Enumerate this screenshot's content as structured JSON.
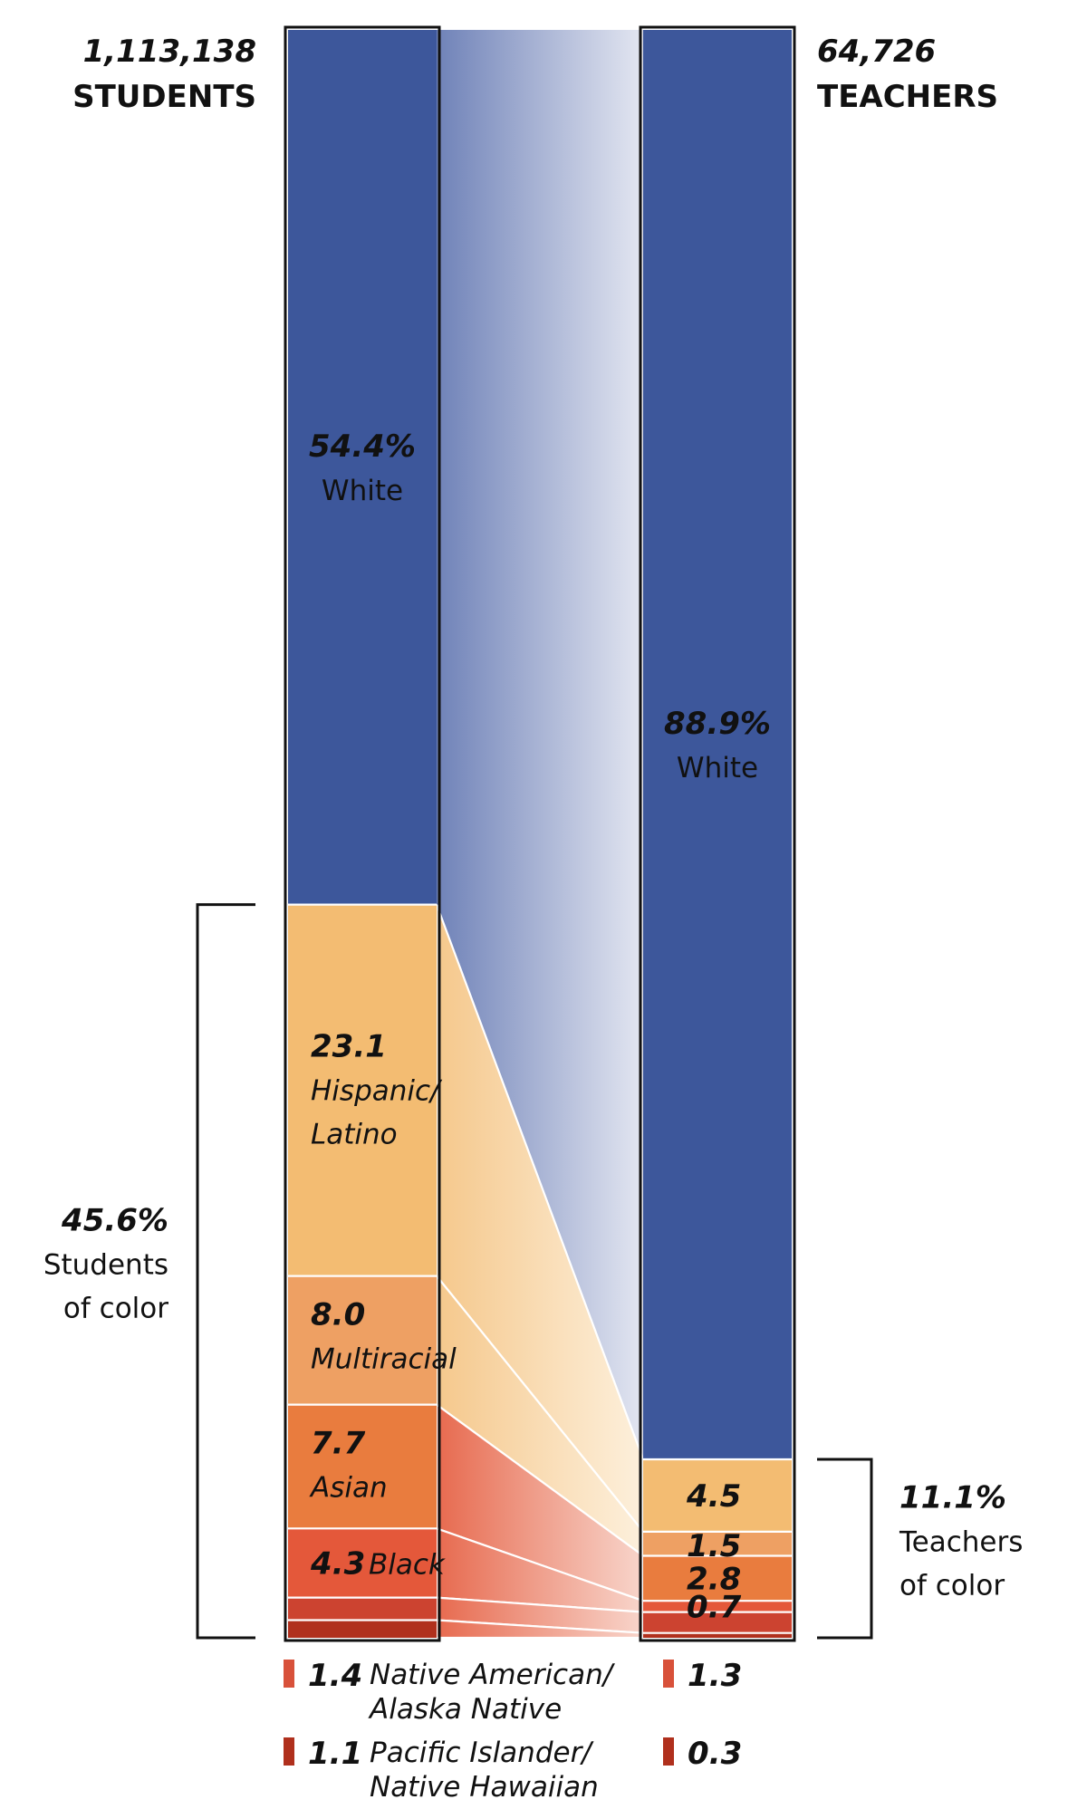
{
  "chart_data": {
    "type": "bar",
    "stacked": true,
    "colors": {
      "White": "#3d579b",
      "Hispanic/Latino": "#f3bc72",
      "Multiracial": "#eea063",
      "Asian": "#e97c3e",
      "Black": "#e4583a",
      "Native American/Alaska Native": "#cc4330",
      "Pacific Islander/Native Hawaiian": "#b0301d"
    },
    "students": {
      "total_label": "1,113,138",
      "heading": "STUDENTS",
      "segments": [
        {
          "name": "White",
          "value": 54.4,
          "value_label": "54.4%",
          "label": "White"
        },
        {
          "name": "Hispanic/Latino",
          "value": 23.1,
          "value_label": "23.1",
          "label_lines": [
            "Hispanic/",
            "Latino"
          ]
        },
        {
          "name": "Multiracial",
          "value": 8.0,
          "value_label": "8.0",
          "label": "Multiracial"
        },
        {
          "name": "Asian",
          "value": 7.7,
          "value_label": "7.7",
          "label": "Asian"
        },
        {
          "name": "Black",
          "value": 4.3,
          "value_label": "4.3",
          "label": "Black"
        },
        {
          "name": "Native American/Alaska Native",
          "value": 1.4,
          "value_label": "1.4"
        },
        {
          "name": "Pacific Islander/Native Hawaiian",
          "value": 1.1,
          "value_label": "1.1"
        }
      ],
      "bracket": {
        "value_label": "45.6%",
        "line1": "Students",
        "line2": "of color"
      }
    },
    "teachers": {
      "total_label": "64,726",
      "heading": "TEACHERS",
      "segments": [
        {
          "name": "White",
          "value": 88.9,
          "value_label": "88.9%",
          "label": "White"
        },
        {
          "name": "Hispanic/Latino",
          "value": 4.5,
          "value_label": "4.5"
        },
        {
          "name": "Multiracial",
          "value": 1.5,
          "value_label": "1.5"
        },
        {
          "name": "Asian",
          "value": 2.8,
          "value_label": "2.8"
        },
        {
          "name": "Black",
          "value": 0.7,
          "value_label": "0.7"
        },
        {
          "name": "Native American/Alaska Native",
          "value": 1.3,
          "value_label": "1.3"
        },
        {
          "name": "Pacific Islander/Native Hawaiian",
          "value": 0.3,
          "value_label": "0.3"
        }
      ],
      "bracket": {
        "value_label": "11.1%",
        "line1": "Teachers",
        "line2": "of color"
      }
    },
    "footnotes": [
      {
        "student_value": "1.4",
        "teacher_value": "1.3",
        "label_lines": [
          "Native American/",
          "Alaska Native"
        ],
        "color": "#d8513a"
      },
      {
        "student_value": "1.1",
        "teacher_value": "0.3",
        "label_lines": [
          "Pacific Islander/",
          "Native Hawaiian"
        ],
        "color": "#b0301d"
      }
    ]
  }
}
